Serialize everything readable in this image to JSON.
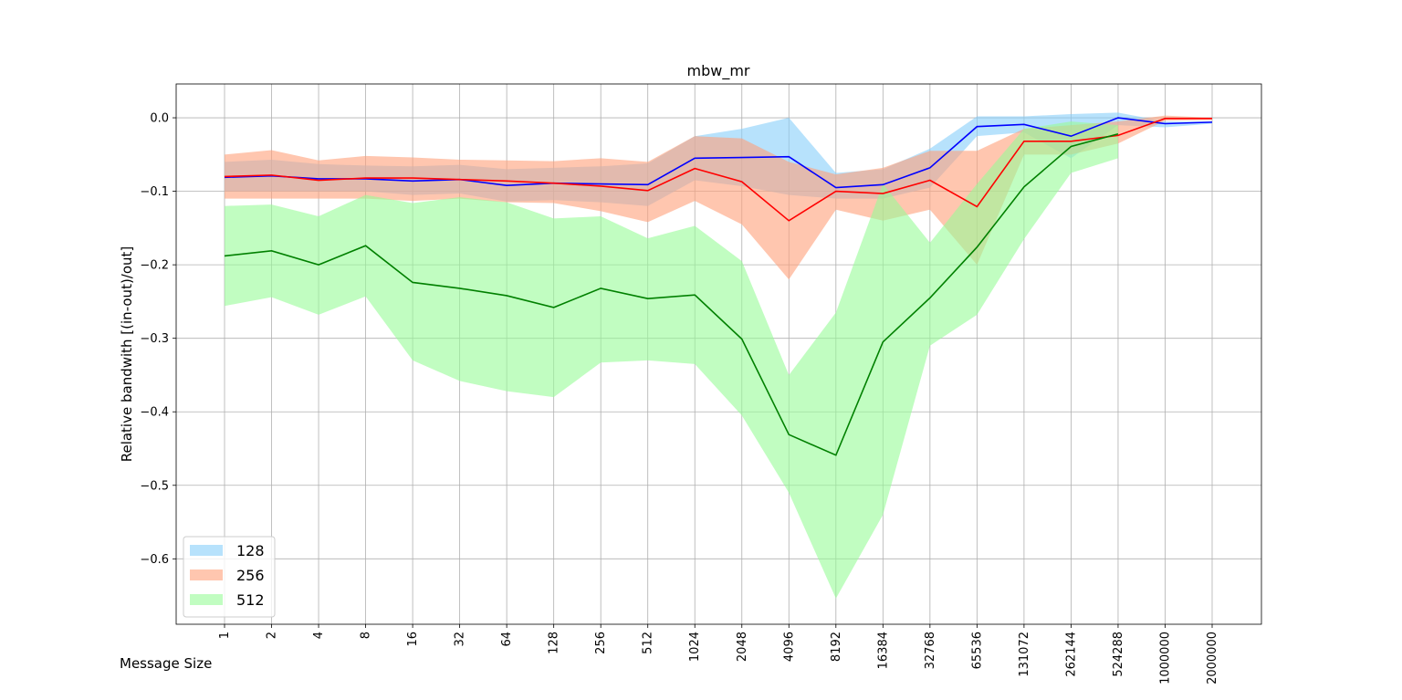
{
  "chart_data": {
    "type": "band-line",
    "title": "mbw_mr",
    "x_label": "Message Size",
    "y_label": "Relative bandwith [(in-out)/out]",
    "categories": [
      "1",
      "2",
      "4",
      "8",
      "16",
      "32",
      "64",
      "128",
      "256",
      "512",
      "1024",
      "2048",
      "4096",
      "8192",
      "16384",
      "32768",
      "65536",
      "131072",
      "262144",
      "524288",
      "1000000",
      "2000000"
    ],
    "ylim": [
      -0.689,
      0.046
    ],
    "yticks": [
      {
        "value": 0,
        "label": "0.0"
      },
      {
        "value": -0.1,
        "label": "−0.1"
      },
      {
        "value": -0.2,
        "label": "−0.2"
      },
      {
        "value": -0.3,
        "label": "−0.3"
      },
      {
        "value": -0.4,
        "label": "−0.4"
      },
      {
        "value": -0.5,
        "label": "−0.5"
      },
      {
        "value": -0.6,
        "label": "−0.6"
      }
    ],
    "grid": true,
    "legend": "lower left",
    "series": [
      {
        "name": "128",
        "color": "#87cefa",
        "line_color": "#0000ff",
        "values": [
          -0.081,
          -0.079,
          -0.083,
          -0.083,
          -0.086,
          -0.084,
          -0.092,
          -0.089,
          -0.09,
          -0.091,
          -0.055,
          -0.054,
          -0.053,
          -0.095,
          -0.091,
          -0.068,
          -0.012,
          -0.009,
          -0.025,
          0.0,
          -0.008,
          -0.006
        ],
        "upper": [
          -0.06,
          -0.057,
          -0.063,
          -0.065,
          -0.066,
          -0.064,
          -0.07,
          -0.068,
          -0.066,
          -0.062,
          -0.025,
          -0.015,
          0.0,
          -0.075,
          -0.07,
          -0.042,
          0.002,
          0.002,
          0.005,
          0.007,
          -0.005,
          -0.005
        ],
        "lower": [
          -0.1,
          -0.1,
          -0.1,
          -0.1,
          -0.105,
          -0.103,
          -0.114,
          -0.112,
          -0.115,
          -0.12,
          -0.085,
          -0.093,
          -0.105,
          -0.11,
          -0.11,
          -0.095,
          -0.025,
          -0.02,
          -0.055,
          -0.01,
          -0.013,
          -0.008
        ]
      },
      {
        "name": "256",
        "color": "#ffa07a",
        "line_color": "#ff0000",
        "values": [
          -0.08,
          -0.078,
          -0.085,
          -0.082,
          -0.082,
          -0.084,
          -0.086,
          -0.089,
          -0.093,
          -0.099,
          -0.069,
          -0.087,
          -0.14,
          -0.1,
          -0.103,
          -0.085,
          -0.121,
          -0.032,
          -0.032,
          -0.024,
          -0.001,
          -0.001
        ],
        "upper": [
          -0.05,
          -0.044,
          -0.058,
          -0.052,
          -0.054,
          -0.057,
          -0.058,
          -0.059,
          -0.055,
          -0.06,
          -0.025,
          -0.028,
          -0.06,
          -0.077,
          -0.068,
          -0.045,
          -0.045,
          -0.015,
          -0.01,
          -0.005,
          0.003,
          0.0
        ],
        "lower": [
          -0.11,
          -0.11,
          -0.11,
          -0.11,
          -0.113,
          -0.11,
          -0.115,
          -0.116,
          -0.127,
          -0.142,
          -0.113,
          -0.145,
          -0.22,
          -0.125,
          -0.14,
          -0.125,
          -0.2,
          -0.05,
          -0.05,
          -0.035,
          -0.004,
          -0.003
        ]
      },
      {
        "name": "512",
        "color": "#98fb98",
        "line_color": "#008000",
        "values": [
          -0.188,
          -0.181,
          -0.2,
          -0.174,
          -0.224,
          -0.232,
          -0.242,
          -0.258,
          -0.232,
          -0.246,
          -0.241,
          -0.301,
          -0.431,
          -0.459,
          -0.305,
          -0.245,
          -0.176,
          -0.094,
          -0.039,
          -0.022,
          null,
          null
        ],
        "upper": [
          -0.12,
          -0.118,
          -0.134,
          -0.105,
          -0.116,
          -0.108,
          -0.115,
          -0.137,
          -0.134,
          -0.164,
          -0.147,
          -0.195,
          -0.35,
          -0.265,
          -0.09,
          -0.17,
          -0.09,
          -0.015,
          -0.005,
          -0.01,
          null,
          null
        ],
        "lower": [
          -0.256,
          -0.244,
          -0.268,
          -0.243,
          -0.33,
          -0.358,
          -0.372,
          -0.38,
          -0.333,
          -0.33,
          -0.335,
          -0.405,
          -0.51,
          -0.654,
          -0.54,
          -0.31,
          -0.268,
          -0.165,
          -0.075,
          -0.055,
          null,
          null
        ]
      }
    ]
  }
}
